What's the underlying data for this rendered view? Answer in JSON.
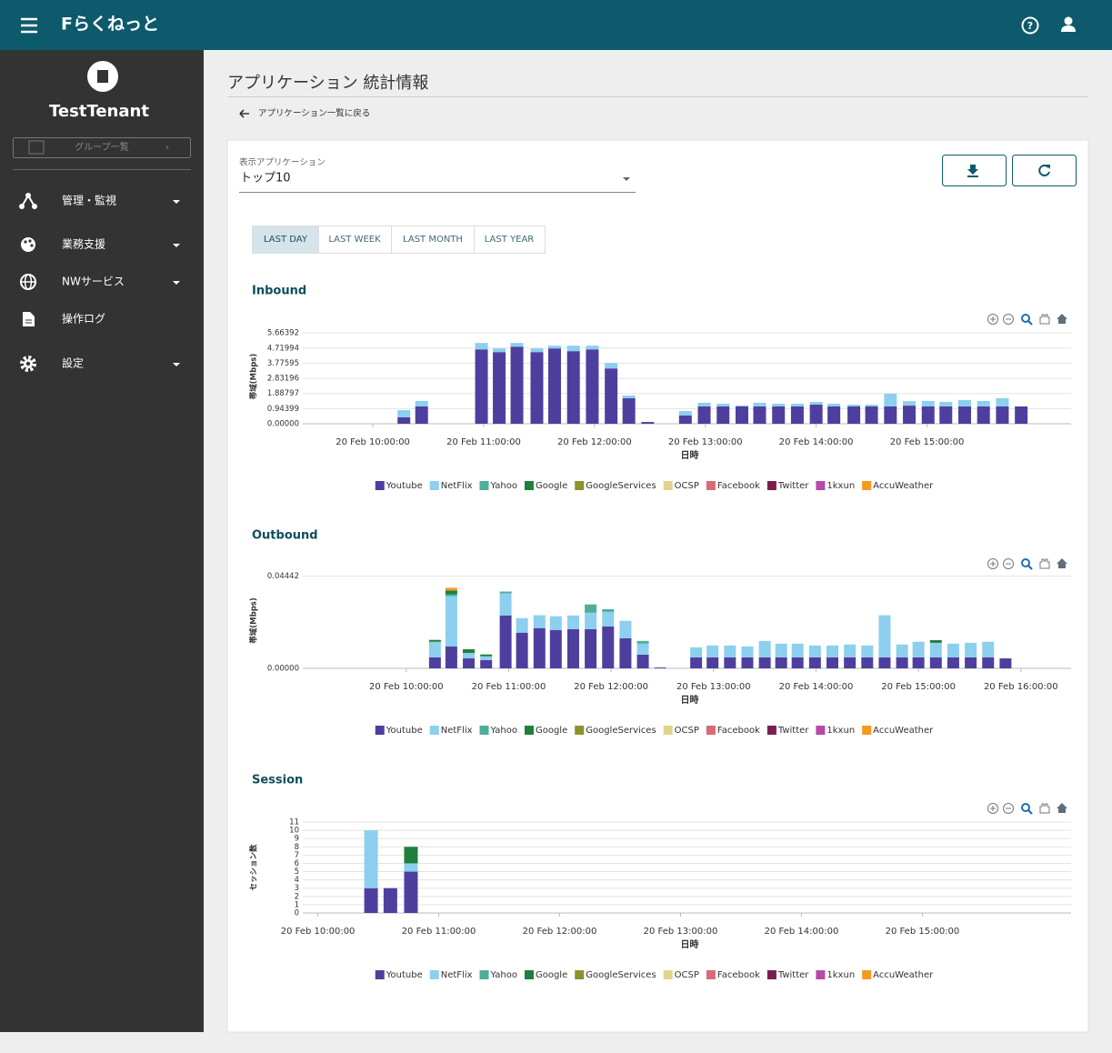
{
  "header": {
    "brand": "Fらくねっと"
  },
  "sidebar": {
    "tenant": "TestTenant",
    "group_button": "グループ一覧",
    "menu": [
      "管理・監視",
      "業務支援",
      "NWサービス",
      "操作ログ",
      "設定"
    ]
  },
  "page": {
    "title": "アプリケーション 統計情報",
    "back_link": "アプリケーション一覧に戻る",
    "select_label": "表示アプリケーション",
    "select_value": "トップ10",
    "tabs": [
      "LAST DAY",
      "LAST WEEK",
      "LAST MONTH",
      "LAST YEAR"
    ]
  },
  "chart_data": [
    {
      "type": "bar",
      "stacked": true,
      "title": "Inbound",
      "x_label": "日時",
      "y_label": "帯域(Mbps)",
      "grid": true,
      "legend": "bottom",
      "x": [
        10.28,
        10.44,
        10.98,
        11.14,
        11.3,
        11.48,
        11.64,
        11.81,
        11.98,
        12.15,
        12.31,
        12.48,
        12.82,
        12.99,
        13.16,
        13.33,
        13.49,
        13.66,
        13.83,
        14.0,
        14.16,
        14.34,
        14.5,
        14.67,
        14.84,
        15.01,
        15.17,
        15.34,
        15.51,
        15.68,
        15.85
      ],
      "xlim": [
        9.22,
        16.3
      ],
      "xticks": [
        {
          "value": 10,
          "label": "20 Feb 10:00:00"
        },
        {
          "value": 11,
          "label": "20 Feb 11:00:00"
        },
        {
          "value": 12,
          "label": "20 Feb 12:00:00"
        },
        {
          "value": 13,
          "label": "20 Feb 13:00:00"
        },
        {
          "value": 14,
          "label": "20 Feb 14:00:00"
        },
        {
          "value": 15,
          "label": "20 Feb 15:00:00"
        }
      ],
      "ylim": [
        0,
        5.9
      ],
      "yticks": [
        {
          "value": 0,
          "label": "0.00000"
        },
        0.94399,
        1.88797,
        2.83196,
        3.77595,
        4.71994,
        5.66392
      ],
      "series": [
        {
          "name": "Youtube",
          "color": "#4e3f9f",
          "values": [
            0.4,
            1.08,
            4.64,
            4.47,
            4.81,
            4.47,
            4.7,
            4.53,
            4.64,
            3.45,
            1.59,
            0.11,
            0.51,
            1.08,
            1.08,
            1.08,
            1.08,
            1.08,
            1.08,
            1.19,
            1.08,
            1.08,
            1.08,
            1.08,
            1.13,
            1.08,
            1.08,
            1.08,
            1.08,
            1.08,
            1.08
          ]
        },
        {
          "name": "NetFlix",
          "color": "#8ccfee",
          "values": [
            0.45,
            0.34,
            0.4,
            0.23,
            0.23,
            0.23,
            0.17,
            0.34,
            0.23,
            0.34,
            0.17,
            0,
            0.28,
            0.23,
            0.17,
            0.06,
            0.23,
            0.17,
            0.17,
            0.17,
            0.17,
            0.11,
            0.11,
            0.79,
            0.28,
            0.34,
            0.28,
            0.4,
            0.34,
            0.51,
            0
          ]
        },
        {
          "name": "Yahoo",
          "color": "#4fae9b",
          "values": [
            0,
            0,
            0,
            0,
            0,
            0,
            0,
            0,
            0,
            0,
            0,
            0,
            0,
            0,
            0,
            0,
            0,
            0,
            0,
            0,
            0,
            0,
            0,
            0,
            0,
            0,
            0,
            0,
            0,
            0,
            0
          ]
        },
        {
          "name": "Google",
          "color": "#1f7f3e",
          "values": [
            0,
            0,
            0,
            0,
            0,
            0,
            0,
            0,
            0,
            0,
            0,
            0,
            0,
            0,
            0,
            0,
            0,
            0,
            0,
            0,
            0,
            0,
            0,
            0,
            0,
            0,
            0,
            0,
            0,
            0,
            0
          ]
        },
        {
          "name": "GoogleServices",
          "color": "#8c922d",
          "values": [
            0,
            0,
            0,
            0,
            0,
            0,
            0,
            0,
            0,
            0,
            0,
            0,
            0,
            0,
            0,
            0,
            0,
            0,
            0,
            0,
            0,
            0,
            0,
            0,
            0,
            0,
            0,
            0,
            0,
            0,
            0
          ]
        },
        {
          "name": "OCSP",
          "color": "#dfd38e",
          "values": [
            0,
            0,
            0,
            0,
            0,
            0,
            0,
            0,
            0,
            0,
            0,
            0,
            0,
            0,
            0,
            0,
            0,
            0,
            0,
            0,
            0,
            0,
            0,
            0,
            0,
            0,
            0,
            0,
            0,
            0,
            0
          ]
        },
        {
          "name": "Facebook",
          "color": "#d96a7a",
          "values": [
            0,
            0,
            0,
            0,
            0,
            0,
            0,
            0,
            0,
            0,
            0,
            0,
            0,
            0,
            0,
            0,
            0,
            0,
            0,
            0,
            0,
            0,
            0,
            0,
            0,
            0,
            0,
            0,
            0,
            0,
            0
          ]
        },
        {
          "name": "Twitter",
          "color": "#7b1e4f",
          "values": [
            0,
            0,
            0,
            0,
            0,
            0,
            0,
            0,
            0,
            0,
            0,
            0,
            0,
            0,
            0,
            0,
            0,
            0,
            0,
            0,
            0,
            0,
            0,
            0,
            0,
            0,
            0,
            0,
            0,
            0,
            0
          ]
        },
        {
          "name": "1kxun",
          "color": "#b64aa9",
          "values": [
            0,
            0,
            0,
            0,
            0,
            0,
            0,
            0,
            0,
            0,
            0,
            0,
            0,
            0,
            0,
            0,
            0,
            0,
            0,
            0,
            0,
            0,
            0,
            0,
            0,
            0,
            0,
            0,
            0,
            0,
            0
          ]
        },
        {
          "name": "AccuWeather",
          "color": "#f49a1f",
          "values": [
            0,
            0,
            0,
            0,
            0,
            0,
            0,
            0,
            0,
            0,
            0,
            0,
            0,
            0,
            0,
            0,
            0,
            0,
            0,
            0,
            0,
            0,
            0,
            0,
            0,
            0,
            0,
            0,
            0,
            0,
            0
          ]
        }
      ]
    },
    {
      "type": "bar",
      "stacked": true,
      "title": "Outbound",
      "x_label": "日時",
      "y_label": "帯域(Mbps)",
      "grid": true,
      "legend": "bottom",
      "x": [
        10.28,
        10.44,
        10.61,
        10.78,
        10.97,
        11.13,
        11.3,
        11.46,
        11.63,
        11.8,
        11.97,
        12.14,
        12.31,
        12.48,
        12.83,
        12.99,
        13.16,
        13.33,
        13.5,
        13.66,
        13.82,
        13.99,
        14.16,
        14.33,
        14.5,
        14.67,
        14.84,
        15.0,
        15.17,
        15.34,
        15.51,
        15.68,
        15.85
      ],
      "xlim": [
        8.83,
        16.49
      ],
      "xticks": [
        {
          "value": 10,
          "label": "20 Feb 10:00:00"
        },
        {
          "value": 11,
          "label": "20 Feb 11:00:00"
        },
        {
          "value": 12,
          "label": "20 Feb 12:00:00"
        },
        {
          "value": 13,
          "label": "20 Feb 13:00:00"
        },
        {
          "value": 14,
          "label": "20 Feb 14:00:00"
        },
        {
          "value": 15,
          "label": "20 Feb 15:00:00"
        },
        {
          "value": 16,
          "label": "20 Feb 16:00:00"
        }
      ],
      "ylim": [
        0,
        0.046
      ],
      "yticks": [
        {
          "value": 0,
          "label": "0.00000"
        },
        0.04442
      ],
      "series": [
        {
          "name": "Youtube",
          "color": "#4e3f9f",
          "values": [
            0.0053,
            0.0106,
            0.0048,
            0.004,
            0.0255,
            0.0172,
            0.0194,
            0.0185,
            0.0189,
            0.0189,
            0.0202,
            0.0145,
            0.0066,
            0.0004,
            0.0053,
            0.0053,
            0.0053,
            0.0053,
            0.0053,
            0.0053,
            0.0053,
            0.0053,
            0.0053,
            0.0053,
            0.0053,
            0.0053,
            0.0053,
            0.0053,
            0.0053,
            0.0053,
            0.0053,
            0.0053,
            0.0048
          ]
        },
        {
          "name": "NetFlix",
          "color": "#8ccfee",
          "values": [
            0.0075,
            0.0242,
            0.0026,
            0.0018,
            0.0106,
            0.007,
            0.0062,
            0.0066,
            0.0066,
            0.0079,
            0.007,
            0.0084,
            0.0053,
            0,
            0.0048,
            0.0057,
            0.0057,
            0.0053,
            0.0079,
            0.0066,
            0.0066,
            0.0057,
            0.0057,
            0.0062,
            0.0057,
            0.0203,
            0.0062,
            0.0075,
            0.007,
            0.0066,
            0.007,
            0.0075,
            0
          ]
        },
        {
          "name": "Yahoo",
          "color": "#4fae9b",
          "values": [
            0,
            0.0009,
            0,
            0,
            0.0009,
            0,
            0,
            0,
            0,
            0.004,
            0.0013,
            0,
            0.0013,
            0,
            0,
            0,
            0,
            0,
            0,
            0,
            0,
            0,
            0,
            0,
            0,
            0,
            0,
            0,
            0,
            0,
            0,
            0,
            0
          ]
        },
        {
          "name": "Google",
          "color": "#1f7f3e",
          "values": [
            0.0009,
            0.0018,
            0.0018,
            0.0009,
            0,
            0,
            0,
            0,
            0,
            0,
            0,
            0,
            0,
            0,
            0,
            0,
            0,
            0,
            0,
            0,
            0,
            0,
            0,
            0,
            0,
            0,
            0,
            0,
            0.0013,
            0,
            0,
            0,
            0
          ]
        },
        {
          "name": "GoogleServices",
          "color": "#8c922d",
          "values": [
            0,
            0,
            0,
            0,
            0,
            0,
            0,
            0,
            0,
            0,
            0,
            0,
            0,
            0,
            0,
            0,
            0,
            0,
            0,
            0,
            0,
            0,
            0,
            0,
            0,
            0,
            0,
            0,
            0,
            0,
            0,
            0,
            0
          ]
        },
        {
          "name": "OCSP",
          "color": "#dfd38e",
          "values": [
            0,
            0,
            0,
            0,
            0,
            0,
            0,
            0,
            0,
            0,
            0,
            0,
            0,
            0,
            0,
            0,
            0,
            0,
            0,
            0,
            0,
            0,
            0,
            0,
            0,
            0,
            0,
            0,
            0,
            0,
            0,
            0,
            0
          ]
        },
        {
          "name": "Facebook",
          "color": "#d96a7a",
          "values": [
            0,
            0,
            0,
            0,
            0,
            0,
            0,
            0,
            0,
            0,
            0,
            0,
            0,
            0,
            0,
            0,
            0,
            0,
            0,
            0,
            0,
            0,
            0,
            0,
            0,
            0,
            0,
            0,
            0,
            0,
            0,
            0,
            0
          ]
        },
        {
          "name": "Twitter",
          "color": "#7b1e4f",
          "values": [
            0,
            0,
            0,
            0,
            0,
            0,
            0,
            0,
            0,
            0,
            0,
            0,
            0,
            0,
            0,
            0,
            0,
            0,
            0,
            0,
            0,
            0,
            0,
            0,
            0,
            0,
            0,
            0,
            0,
            0,
            0,
            0,
            0
          ]
        },
        {
          "name": "1kxun",
          "color": "#b64aa9",
          "values": [
            0,
            0,
            0,
            0,
            0,
            0,
            0,
            0,
            0,
            0,
            0,
            0,
            0,
            0,
            0,
            0,
            0,
            0,
            0,
            0,
            0,
            0,
            0,
            0,
            0,
            0,
            0,
            0,
            0,
            0,
            0,
            0,
            0
          ]
        },
        {
          "name": "AccuWeather",
          "color": "#f49a1f",
          "values": [
            0,
            0.0013,
            0,
            0,
            0,
            0,
            0,
            0,
            0,
            0,
            0,
            0,
            0,
            0,
            0,
            0,
            0,
            0,
            0,
            0,
            0,
            0,
            0,
            0,
            0,
            0,
            0,
            0,
            0,
            0,
            0,
            0,
            0
          ]
        }
      ]
    },
    {
      "type": "bar",
      "stacked": true,
      "title": "Session",
      "x_label": "日時",
      "y_label": "セッション数",
      "grid": true,
      "legend": "bottom",
      "x": [
        10.44,
        10.6,
        10.77
      ],
      "xlim": [
        9.74,
        16.23
      ],
      "xticks": [
        {
          "value": 10,
          "label": "20 Feb 10:00:00"
        },
        {
          "value": 11,
          "label": "20 Feb 11:00:00"
        },
        {
          "value": 12,
          "label": "20 Feb 12:00:00"
        },
        {
          "value": 13,
          "label": "20 Feb 13:00:00"
        },
        {
          "value": 14,
          "label": "20 Feb 14:00:00"
        },
        {
          "value": 15,
          "label": "20 Feb 15:00:00"
        }
      ],
      "ylim": [
        0,
        11
      ],
      "yticks": [
        0,
        1,
        2,
        3,
        4,
        5,
        6,
        7,
        8,
        9,
        10,
        11
      ],
      "series": [
        {
          "name": "Youtube",
          "color": "#4e3f9f",
          "values": [
            3,
            3,
            5
          ]
        },
        {
          "name": "NetFlix",
          "color": "#8ccfee",
          "values": [
            7,
            0,
            1
          ]
        },
        {
          "name": "Yahoo",
          "color": "#4fae9b",
          "values": [
            0,
            0,
            0
          ]
        },
        {
          "name": "Google",
          "color": "#1f7f3e",
          "values": [
            0,
            0,
            2
          ]
        },
        {
          "name": "GoogleServices",
          "color": "#8c922d",
          "values": [
            0,
            0,
            0
          ]
        },
        {
          "name": "OCSP",
          "color": "#dfd38e",
          "values": [
            0,
            0,
            0
          ]
        },
        {
          "name": "Facebook",
          "color": "#d96a7a",
          "values": [
            0,
            0,
            0
          ]
        },
        {
          "name": "Twitter",
          "color": "#7b1e4f",
          "values": [
            0,
            0,
            0
          ]
        },
        {
          "name": "1kxun",
          "color": "#b64aa9",
          "values": [
            0,
            0,
            0
          ]
        },
        {
          "name": "AccuWeather",
          "color": "#f49a1f",
          "values": [
            0,
            0,
            0
          ]
        }
      ]
    }
  ]
}
